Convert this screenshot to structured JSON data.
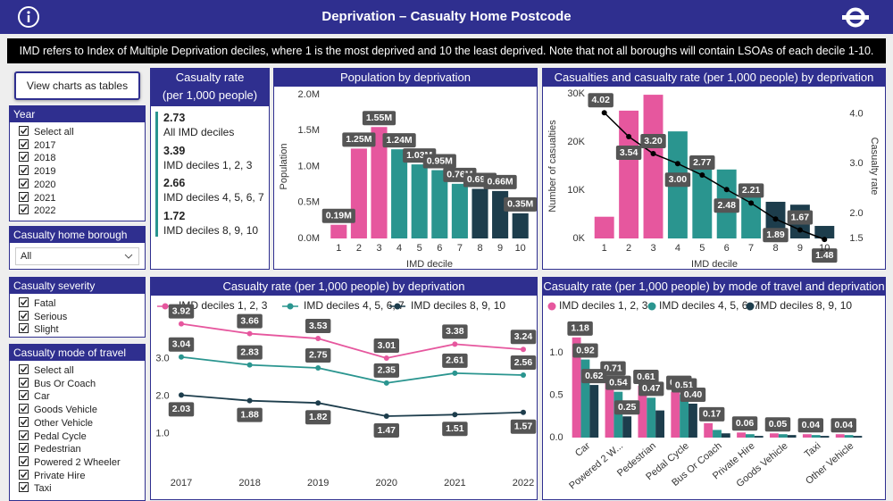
{
  "header": {
    "title": "Deprivation – Casualty Home Postcode",
    "note": "IMD refers to Index of Multiple Deprivation deciles, where 1 is the most deprived and 10 the least deprived. Note that not all boroughs will contain LSOAs of each decile 1-10."
  },
  "button": "View charts as tables",
  "filters": [
    {
      "title": "Year",
      "items": [
        "Select all",
        "2017",
        "2018",
        "2019",
        "2020",
        "2021",
        "2022"
      ]
    },
    {
      "title": "Casualty home borough",
      "value": "All"
    },
    {
      "title": "Casualty severity",
      "items": [
        "Fatal",
        "Serious",
        "Slight"
      ]
    },
    {
      "title": "Casualty mode of travel",
      "items": [
        "Select all",
        "Bus Or Coach",
        "Car",
        "Goods Vehicle",
        "Other Vehicle",
        "Pedal Cycle",
        "Pedestrian",
        "Powered 2 Wheeler",
        "Private Hire",
        "Taxi"
      ]
    }
  ],
  "kpi": {
    "title_lines": [
      "Casualty rate",
      "(per 1,000 people)"
    ],
    "items": [
      {
        "value": 2.73,
        "label": "All IMD deciles"
      },
      {
        "value": 3.39,
        "label": "IMD deciles 1, 2, 3"
      },
      {
        "value": 2.66,
        "label": "IMD deciles 4, 5, 6, 7"
      },
      {
        "value": 1.72,
        "label": "IMD deciles 8, 9, 10"
      }
    ]
  },
  "chart_data": [
    {
      "type": "bar",
      "title": "Population by deprivation",
      "categories": [
        "1",
        "2",
        "3",
        "4",
        "5",
        "6",
        "7",
        "8",
        "9",
        "10"
      ],
      "values": [
        190000,
        1250000,
        1550000,
        1240000,
        1030000,
        950000,
        760000,
        690000,
        660000,
        350000
      ],
      "value_labels": [
        "0.19M",
        "1.25M",
        "1.55M",
        "1.24M",
        "1.03M",
        "0.95M",
        "0.76M",
        "0.69M",
        "0.66M",
        "0.35M"
      ],
      "colors": [
        "#e6579e",
        "#e6579e",
        "#e6579e",
        "#2a958f",
        "#2a958f",
        "#2a958f",
        "#2a958f",
        "#1d3d4c",
        "#1d3d4c",
        "#1d3d4c"
      ],
      "xlabel": "IMD decile",
      "ylabel": "Population",
      "ylim": [
        0,
        2000000
      ],
      "yticks": [
        {
          "value": 0,
          "label": "0.0M"
        },
        {
          "value": 500000,
          "label": "0.5M"
        },
        {
          "value": 1000000,
          "label": "1.0M"
        },
        {
          "value": 1500000,
          "label": "1.5M"
        },
        {
          "value": 2000000,
          "label": "2.0M"
        }
      ]
    },
    {
      "type": "combo",
      "title": "Casualties and casualty rate (per 1,000 people) by deprivation",
      "categories": [
        "1",
        "2",
        "3",
        "4",
        "5",
        "6",
        "7",
        "8",
        "9",
        "10"
      ],
      "series": [
        {
          "values": [
            4500,
            26500,
            29800,
            22200,
            16900,
            14300,
            10000,
            7600,
            7000,
            2600
          ],
          "colors": [
            "#e6579e",
            "#e6579e",
            "#e6579e",
            "#2a958f",
            "#2a958f",
            "#2a958f",
            "#2a958f",
            "#1d3d4c",
            "#1d3d4c",
            "#1d3d4c"
          ]
        },
        {
          "values": [
            4.02,
            3.54,
            3.2,
            3.0,
            2.77,
            2.48,
            2.21,
            1.89,
            1.67,
            1.48
          ],
          "value_labels": [
            "4.02",
            "3.54",
            "3.20",
            "3.00",
            "2.77",
            "2.48",
            "2.21",
            "1.89",
            "1.67",
            "1.48"
          ],
          "color": "#000000",
          "axis": "y2"
        }
      ],
      "xlabel": "IMD decile",
      "ylabel": "Number of casualties",
      "y2label": "Casualty rate",
      "ylim": [
        0,
        30000
      ],
      "yticks": [
        {
          "value": 0,
          "label": "0K"
        },
        {
          "value": 10000,
          "label": "10K"
        },
        {
          "value": 20000,
          "label": "20K"
        },
        {
          "value": 30000,
          "label": "30K"
        }
      ],
      "y2lim": [
        1.5,
        4.4
      ],
      "y2ticks": [
        1.5,
        {
          "value": 2,
          "label": "2.0"
        },
        {
          "value": 3,
          "label": "3.0"
        },
        {
          "value": 4,
          "label": "4.0"
        }
      ]
    },
    {
      "type": "line",
      "title": "Casualty rate (per 1,000 people) by deprivation",
      "categories": [
        "2017",
        "2018",
        "2019",
        "2020",
        "2021",
        "2022"
      ],
      "series": [
        {
          "name": "IMD deciles 1, 2, 3",
          "color": "#e6579e",
          "values": [
            3.92,
            3.66,
            3.53,
            3.01,
            3.38,
            3.24
          ]
        },
        {
          "name": "IMD deciles 4, 5, 6, 7",
          "color": "#2a958f",
          "values": [
            3.04,
            2.83,
            2.75,
            2.35,
            2.61,
            2.56
          ]
        },
        {
          "name": "IMD deciles 8, 9, 10",
          "color": "#1d3d4c",
          "values": [
            2.03,
            1.88,
            1.82,
            1.47,
            1.51,
            1.57
          ]
        }
      ],
      "ylim": [
        0,
        4.1
      ],
      "yticks": [
        {
          "value": 1,
          "label": "1.0"
        },
        {
          "value": 2,
          "label": "2.0"
        },
        {
          "value": 3,
          "label": "3.0"
        }
      ],
      "legend": "top"
    },
    {
      "type": "grouped-bar",
      "title": "Casualty rate (per 1,000 people) by mode of travel and deprivation",
      "categories": [
        "Car",
        "Powered 2 W...",
        "Pedestrian",
        "Pedal Cycle",
        "Bus Or Coach",
        "Private Hire",
        "Goods Vehicle",
        "Taxi",
        "Other Vehicle"
      ],
      "series": [
        {
          "name": "IMD deciles 1, 2, 3",
          "color": "#e6579e",
          "values": [
            1.18,
            0.71,
            0.61,
            0.54,
            0.17,
            0.06,
            0.05,
            0.04,
            0.04
          ],
          "value_labels": [
            "1.18",
            "0.71",
            "0.61",
            "0.54",
            "0.17",
            "0.06",
            "0.05",
            "0.04",
            "0.04"
          ]
        },
        {
          "name": "IMD deciles 4, 5, 6, 7",
          "color": "#2a958f",
          "values": [
            0.92,
            0.54,
            0.47,
            0.51,
            0.09,
            0.04,
            0.04,
            0.03,
            0.03
          ],
          "value_labels": [
            "0.92",
            "0.54",
            "0.47",
            "0.51",
            null,
            null,
            null,
            null,
            null
          ]
        },
        {
          "name": "IMD deciles 8, 9, 10",
          "color": "#1d3d4c",
          "values": [
            0.62,
            0.25,
            0.32,
            0.4,
            0.05,
            0.02,
            0.03,
            0.02,
            0.02
          ],
          "value_labels": [
            "0.62",
            "0.25",
            null,
            "0.40",
            null,
            null,
            null,
            null,
            null
          ]
        }
      ],
      "ylim": [
        0,
        1.21
      ],
      "yticks": [
        {
          "value": 0,
          "label": "0.0"
        },
        0.5,
        {
          "value": 1,
          "label": "1.0"
        }
      ],
      "legend": "top"
    }
  ]
}
